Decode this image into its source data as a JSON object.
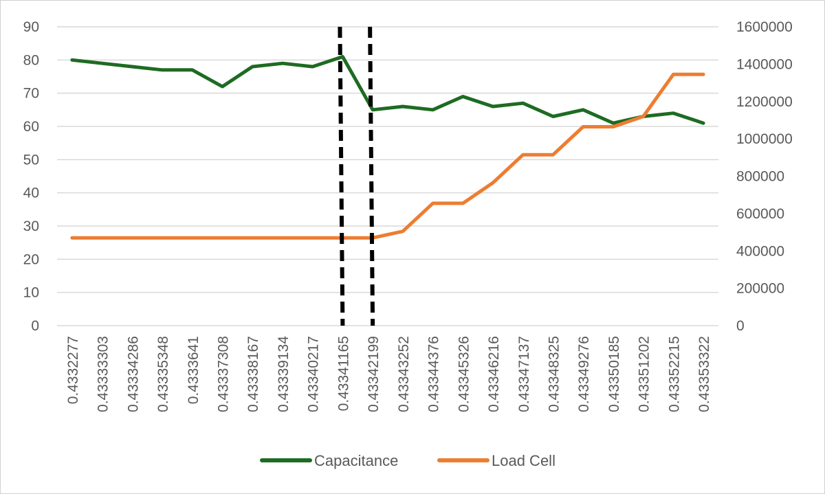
{
  "chart_data": {
    "type": "line",
    "title": "",
    "xlabel": "",
    "ylabel": "",
    "categories": [
      "0.4332277",
      "0.43333303",
      "0.43334286",
      "0.43335348",
      "0.4333641",
      "0.43337308",
      "0.43338167",
      "0.43339134",
      "0.43340217",
      "0.43341165",
      "0.43342199",
      "0.43343252",
      "0.43344376",
      "0.43345326",
      "0.43346216",
      "0.43347137",
      "0.43348325",
      "0.43349276",
      "0.43350185",
      "0.43351202",
      "0.43352215",
      "0.43353322"
    ],
    "series": [
      {
        "name": "Capacitance",
        "axis": "left",
        "color": "#1e6b22",
        "values": [
          80,
          79,
          78,
          77,
          77,
          72,
          78,
          79,
          78,
          81,
          65,
          66,
          65,
          69,
          66,
          67,
          63,
          65,
          61,
          63,
          64,
          61
        ]
      },
      {
        "name": "Load Cell",
        "axis": "right",
        "color": "#ed7d31",
        "values": [
          470000,
          470000,
          470000,
          470000,
          470000,
          470000,
          470000,
          470000,
          470000,
          470000,
          470000,
          505000,
          655000,
          655000,
          765000,
          915000,
          915000,
          1065000,
          1065000,
          1120000,
          1345000,
          1345000
        ]
      }
    ],
    "ylim_left": [
      0,
      90
    ],
    "yticks_left": [
      "0",
      "10",
      "20",
      "30",
      "40",
      "50",
      "60",
      "70",
      "80",
      "90"
    ],
    "ylim_right": [
      0,
      1600000
    ],
    "yticks_right": [
      "0",
      "200000",
      "400000",
      "600000",
      "800000",
      "1000000",
      "1200000",
      "1400000",
      "1600000"
    ],
    "grid": true,
    "legend_position": "bottom",
    "vertical_markers": [
      {
        "category_index": 9,
        "style": "dashed",
        "color": "#000000"
      },
      {
        "category_index": 10,
        "style": "dashed",
        "color": "#000000"
      }
    ]
  }
}
